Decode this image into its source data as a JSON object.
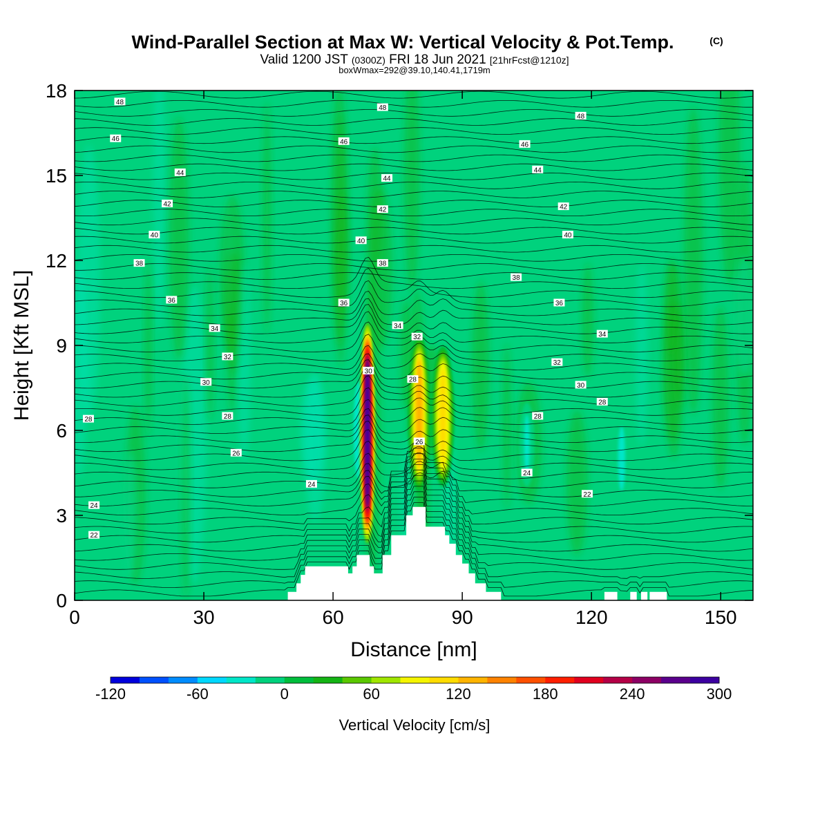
{
  "figure": {
    "title": "Wind-Parallel Section at Max W: Vertical Velocity & Pot.Temp.",
    "title_mark": "(C)",
    "subtitle_parts": [
      "Valid 1200 JST",
      "(0300Z)",
      "FRI 18 Jun 2021",
      "[21hrFcst@1210z]"
    ],
    "subtitle2": "boxWmax=292@39.10,140.41,1719m"
  },
  "chart_data": {
    "type": "heatmap",
    "xlabel": "Distance [nm]",
    "ylabel": "Height [Kft MSL]",
    "xlim": [
      0,
      157.5
    ],
    "ylim": [
      0,
      18
    ],
    "x_ticks": [
      0,
      30,
      60,
      90,
      120,
      150
    ],
    "y_ticks": [
      0,
      3,
      6,
      9,
      12,
      15,
      18
    ],
    "grid": false,
    "background_color": "#00d27d",
    "colorbar": {
      "label": "Vertical Velocity [cm/s]",
      "min": -120,
      "max": 300,
      "step": 20,
      "tick_labels": [
        -120,
        -60,
        0,
        60,
        120,
        180,
        240,
        300
      ],
      "colors": [
        "#0000dc",
        "#0050ff",
        "#008cff",
        "#00d8ff",
        "#00e6c8",
        "#00d27d",
        "#00be3c",
        "#14b414",
        "#5ac800",
        "#a0e600",
        "#f5f500",
        "#ffdc00",
        "#ffb400",
        "#ff8200",
        "#ff5000",
        "#ff1e00",
        "#e1001e",
        "#b40046",
        "#8c0064",
        "#5a008c",
        "#3c00a0"
      ]
    },
    "updrafts": [
      {
        "x": 68,
        "y_bottom": 2.0,
        "y_top": 9.8,
        "peak_w": 292
      },
      {
        "x": 80,
        "y_bottom": 3.8,
        "y_top": 9.4,
        "peak_w": 130
      },
      {
        "x": 85.5,
        "y_bottom": 4.0,
        "y_top": 9.0,
        "peak_w": 120
      }
    ],
    "downdrafts": [
      {
        "x": 66,
        "y_bottom": 4.0,
        "y_top": 8.0,
        "min_w": -45
      },
      {
        "x": 105,
        "y_bottom": 4.0,
        "y_top": 7.0,
        "min_w": -40
      },
      {
        "x": 127,
        "y_bottom": 3.5,
        "y_top": 6.5,
        "min_w": -35
      }
    ],
    "terrain": [
      [
        0,
        0
      ],
      [
        49.5,
        0
      ],
      [
        49.5,
        0.3
      ],
      [
        51.5,
        0.3
      ],
      [
        51.5,
        0.6
      ],
      [
        52.5,
        0.6
      ],
      [
        52.5,
        0.9
      ],
      [
        53.5,
        0.9
      ],
      [
        53.5,
        1.2
      ],
      [
        63.5,
        1.2
      ],
      [
        63.5,
        0.95
      ],
      [
        64.5,
        0.95
      ],
      [
        64.5,
        1.2
      ],
      [
        65.5,
        1.2
      ],
      [
        65.5,
        1.6
      ],
      [
        68.5,
        1.6
      ],
      [
        68.5,
        1.2
      ],
      [
        69.5,
        1.2
      ],
      [
        69.5,
        0.95
      ],
      [
        71.5,
        0.95
      ],
      [
        71.5,
        1.6
      ],
      [
        73.5,
        1.6
      ],
      [
        73.5,
        2.3
      ],
      [
        77,
        2.3
      ],
      [
        77,
        3.0
      ],
      [
        78.5,
        3.0
      ],
      [
        78.5,
        3.3
      ],
      [
        81.5,
        3.3
      ],
      [
        81.5,
        2.6
      ],
      [
        86,
        2.6
      ],
      [
        86,
        2.3
      ],
      [
        87,
        2.3
      ],
      [
        87,
        2.0
      ],
      [
        88.5,
        2.0
      ],
      [
        88.5,
        1.6
      ],
      [
        90,
        1.6
      ],
      [
        90,
        1.3
      ],
      [
        91.5,
        1.3
      ],
      [
        91.5,
        0.95
      ],
      [
        93,
        0.95
      ],
      [
        93,
        0.6
      ],
      [
        95.5,
        0.6
      ],
      [
        95.5,
        0.3
      ],
      [
        99,
        0.3
      ],
      [
        99,
        0
      ],
      [
        123,
        0
      ],
      [
        123,
        0.3
      ],
      [
        126,
        0.3
      ],
      [
        126,
        0
      ],
      [
        129,
        0
      ],
      [
        129,
        0.3
      ],
      [
        130.5,
        0.3
      ],
      [
        130.5,
        0
      ],
      [
        131.5,
        0
      ],
      [
        131.5,
        0.3
      ],
      [
        133,
        0.3
      ],
      [
        133,
        0
      ],
      [
        133.5,
        0
      ],
      [
        133.5,
        0.3
      ],
      [
        137.5,
        0.3
      ],
      [
        137.5,
        0
      ],
      [
        157.5,
        0
      ]
    ],
    "isentrope_labels": [
      {
        "value": "48",
        "x": 10.5,
        "y": 17.6
      },
      {
        "value": "48",
        "x": 71.5,
        "y": 17.4
      },
      {
        "value": "48",
        "x": 117.5,
        "y": 17.1
      },
      {
        "value": "46",
        "x": 9.5,
        "y": 16.3
      },
      {
        "value": "46",
        "x": 62.5,
        "y": 16.2
      },
      {
        "value": "46",
        "x": 104.5,
        "y": 16.1
      },
      {
        "value": "44",
        "x": 24.5,
        "y": 15.1
      },
      {
        "value": "44",
        "x": 72.5,
        "y": 14.9
      },
      {
        "value": "44",
        "x": 107.5,
        "y": 15.2
      },
      {
        "value": "42",
        "x": 21.5,
        "y": 14.0
      },
      {
        "value": "42",
        "x": 71.5,
        "y": 13.8
      },
      {
        "value": "42",
        "x": 113.5,
        "y": 13.9
      },
      {
        "value": "40",
        "x": 18.5,
        "y": 12.9
      },
      {
        "value": "40",
        "x": 66.5,
        "y": 12.7
      },
      {
        "value": "40",
        "x": 114.5,
        "y": 12.9
      },
      {
        "value": "38",
        "x": 15,
        "y": 11.9
      },
      {
        "value": "38",
        "x": 71.5,
        "y": 11.9
      },
      {
        "value": "38",
        "x": 102.5,
        "y": 11.4
      },
      {
        "value": "36",
        "x": 22.5,
        "y": 10.6
      },
      {
        "value": "36",
        "x": 62.5,
        "y": 10.5
      },
      {
        "value": "36",
        "x": 112.5,
        "y": 10.5
      },
      {
        "value": "34",
        "x": 32.5,
        "y": 9.6
      },
      {
        "value": "34",
        "x": 75,
        "y": 9.7
      },
      {
        "value": "34",
        "x": 122.5,
        "y": 9.4
      },
      {
        "value": "32",
        "x": 35.5,
        "y": 8.6
      },
      {
        "value": "32",
        "x": 79.5,
        "y": 9.3
      },
      {
        "value": "32",
        "x": 112,
        "y": 8.4
      },
      {
        "value": "30",
        "x": 30.5,
        "y": 7.7
      },
      {
        "value": "30",
        "x": 68.2,
        "y": 8.1
      },
      {
        "value": "30",
        "x": 117.5,
        "y": 7.6
      },
      {
        "value": "28",
        "x": 3.2,
        "y": 6.4
      },
      {
        "value": "28",
        "x": 35.5,
        "y": 6.5
      },
      {
        "value": "28",
        "x": 78.5,
        "y": 7.8
      },
      {
        "value": "28",
        "x": 107.5,
        "y": 6.5
      },
      {
        "value": "28",
        "x": 122.5,
        "y": 7.0
      },
      {
        "value": "26",
        "x": 37.5,
        "y": 5.2
      },
      {
        "value": "26",
        "x": 80,
        "y": 5.6
      },
      {
        "value": "24",
        "x": 4.5,
        "y": 3.35
      },
      {
        "value": "24",
        "x": 55,
        "y": 4.1
      },
      {
        "value": "24",
        "x": 105,
        "y": 4.5
      },
      {
        "value": "22",
        "x": 4.5,
        "y": 2.3
      },
      {
        "value": "22",
        "x": 119,
        "y": 3.75
      }
    ]
  }
}
